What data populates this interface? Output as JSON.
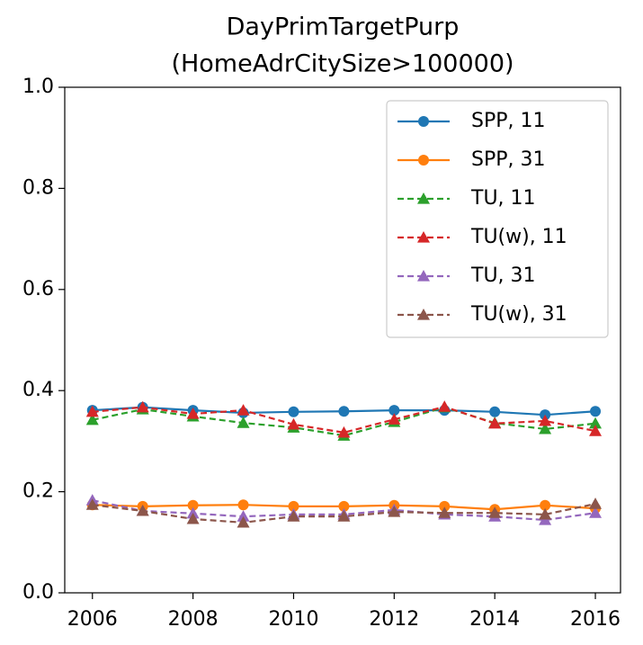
{
  "chart_data": {
    "type": "line",
    "title": [
      "DayPrimTargetPurp",
      "(HomeAdrCitySize>100000)"
    ],
    "x": [
      2006,
      2007,
      2008,
      2009,
      2010,
      2011,
      2012,
      2013,
      2014,
      2015,
      2016
    ],
    "xlim": [
      2005.45,
      2016.5
    ],
    "xticks": [
      2006,
      2008,
      2010,
      2012,
      2014,
      2016
    ],
    "ylim": [
      0,
      1
    ],
    "yticks": [
      {
        "value": 0,
        "label": "0.0"
      },
      0.2,
      0.4,
      0.6,
      0.8,
      {
        "value": 1,
        "label": "1.0"
      }
    ],
    "legend": "upper right",
    "series": [
      {
        "name": "SPP, 11",
        "color": "#1f77b4",
        "marker": "circle",
        "linestyle": "solid",
        "values": [
          0.361,
          0.367,
          0.361,
          0.356,
          0.358,
          0.359,
          0.361,
          0.361,
          0.358,
          0.352,
          0.359
        ]
      },
      {
        "name": "SPP, 31",
        "color": "#ff7f0e",
        "marker": "circle",
        "linestyle": "solid",
        "values": [
          0.174,
          0.171,
          0.173,
          0.174,
          0.171,
          0.171,
          0.173,
          0.171,
          0.165,
          0.173,
          0.167
        ]
      },
      {
        "name": "TU, 11",
        "color": "#2ca02c",
        "marker": "triangle",
        "linestyle": "dashed",
        "values": [
          0.342,
          0.363,
          0.349,
          0.336,
          0.327,
          0.311,
          0.338,
          0.367,
          0.336,
          0.324,
          0.335
        ]
      },
      {
        "name": "TU(w), 11",
        "color": "#d62728",
        "marker": "triangle",
        "linestyle": "dashed",
        "values": [
          0.358,
          0.367,
          0.354,
          0.361,
          0.333,
          0.317,
          0.343,
          0.368,
          0.335,
          0.34,
          0.32
        ]
      },
      {
        "name": "TU, 31",
        "color": "#9467bd",
        "marker": "triangle",
        "linestyle": "dashed",
        "values": [
          0.183,
          0.162,
          0.157,
          0.151,
          0.155,
          0.155,
          0.164,
          0.155,
          0.151,
          0.144,
          0.158
        ]
      },
      {
        "name": "TU(w), 31",
        "color": "#8c564b",
        "marker": "triangle",
        "linestyle": "dashed",
        "values": [
          0.174,
          0.162,
          0.146,
          0.139,
          0.151,
          0.151,
          0.16,
          0.158,
          0.158,
          0.155,
          0.176
        ]
      }
    ]
  }
}
